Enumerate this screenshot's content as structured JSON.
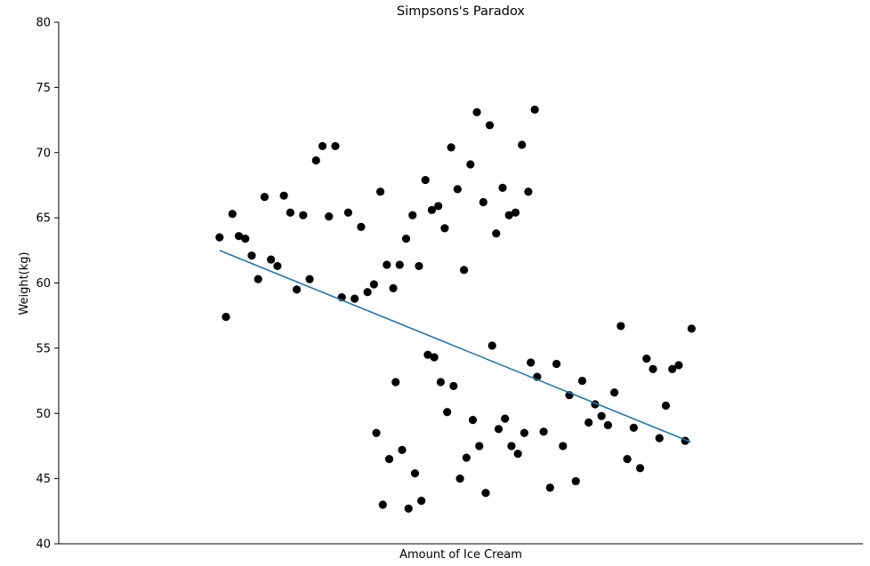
{
  "chart_data": {
    "type": "scatter",
    "title": "Simpsons's Paradox",
    "xlabel": "Amount of Ice Cream",
    "ylabel": "Weight(kg)",
    "xlim": [
      0,
      100
    ],
    "ylim": [
      40,
      80
    ],
    "yticks": [
      40,
      45,
      50,
      55,
      60,
      65,
      70,
      75,
      80
    ],
    "xticks": [],
    "grid": false,
    "legend": "none",
    "colors": {
      "points": "#000000",
      "trend": "#1f77b4",
      "axis": "#000000"
    },
    "points": [
      [
        20.0,
        63.5
      ],
      [
        20.8,
        57.4
      ],
      [
        21.6,
        65.3
      ],
      [
        22.4,
        63.6
      ],
      [
        23.2,
        63.4
      ],
      [
        24.0,
        62.1
      ],
      [
        24.8,
        60.3
      ],
      [
        25.6,
        66.6
      ],
      [
        26.4,
        61.8
      ],
      [
        27.2,
        61.3
      ],
      [
        28.0,
        66.7
      ],
      [
        28.8,
        65.4
      ],
      [
        29.6,
        59.5
      ],
      [
        30.4,
        65.2
      ],
      [
        31.2,
        60.3
      ],
      [
        32.0,
        69.4
      ],
      [
        32.8,
        70.5
      ],
      [
        33.6,
        65.1
      ],
      [
        34.4,
        70.5
      ],
      [
        35.2,
        58.9
      ],
      [
        36.0,
        65.4
      ],
      [
        36.8,
        58.8
      ],
      [
        37.6,
        64.3
      ],
      [
        38.4,
        59.3
      ],
      [
        39.2,
        59.9
      ],
      [
        40.0,
        67.0
      ],
      [
        40.8,
        61.4
      ],
      [
        41.6,
        59.6
      ],
      [
        42.4,
        61.4
      ],
      [
        43.2,
        63.4
      ],
      [
        44.0,
        65.2
      ],
      [
        44.8,
        61.3
      ],
      [
        45.6,
        67.9
      ],
      [
        46.4,
        65.6
      ],
      [
        47.2,
        65.9
      ],
      [
        48.0,
        64.2
      ],
      [
        48.8,
        70.4
      ],
      [
        49.6,
        67.2
      ],
      [
        50.4,
        61.0
      ],
      [
        51.2,
        69.1
      ],
      [
        52.0,
        73.1
      ],
      [
        52.8,
        66.2
      ],
      [
        53.6,
        72.1
      ],
      [
        54.4,
        63.8
      ],
      [
        55.2,
        67.3
      ],
      [
        56.0,
        65.2
      ],
      [
        56.8,
        65.4
      ],
      [
        57.6,
        70.6
      ],
      [
        58.4,
        67.0
      ],
      [
        59.2,
        73.3
      ],
      [
        39.5,
        48.5
      ],
      [
        40.3,
        43.0
      ],
      [
        41.1,
        46.5
      ],
      [
        41.9,
        52.4
      ],
      [
        42.7,
        47.2
      ],
      [
        43.5,
        42.7
      ],
      [
        44.3,
        45.4
      ],
      [
        45.1,
        43.3
      ],
      [
        45.9,
        54.5
      ],
      [
        46.7,
        54.3
      ],
      [
        47.5,
        52.4
      ],
      [
        48.3,
        50.1
      ],
      [
        49.1,
        52.1
      ],
      [
        49.9,
        45.0
      ],
      [
        50.7,
        46.6
      ],
      [
        51.5,
        49.5
      ],
      [
        52.3,
        47.5
      ],
      [
        53.1,
        43.9
      ],
      [
        53.9,
        55.2
      ],
      [
        54.7,
        48.8
      ],
      [
        55.5,
        49.6
      ],
      [
        56.3,
        47.5
      ],
      [
        57.1,
        46.9
      ],
      [
        57.9,
        48.5
      ],
      [
        58.7,
        53.9
      ],
      [
        59.5,
        52.8
      ],
      [
        60.3,
        48.6
      ],
      [
        61.1,
        44.3
      ],
      [
        61.9,
        53.8
      ],
      [
        62.7,
        47.5
      ],
      [
        63.5,
        51.4
      ],
      [
        64.3,
        44.8
      ],
      [
        65.1,
        52.5
      ],
      [
        65.9,
        49.3
      ],
      [
        66.7,
        50.7
      ],
      [
        67.5,
        49.8
      ],
      [
        68.3,
        49.1
      ],
      [
        69.1,
        51.6
      ],
      [
        69.9,
        56.7
      ],
      [
        70.7,
        46.5
      ],
      [
        71.5,
        48.9
      ],
      [
        72.3,
        45.8
      ],
      [
        73.1,
        54.2
      ],
      [
        73.9,
        53.4
      ],
      [
        74.7,
        48.1
      ],
      [
        75.5,
        50.6
      ],
      [
        76.3,
        53.4
      ],
      [
        77.1,
        53.7
      ],
      [
        77.9,
        47.9
      ],
      [
        78.7,
        56.5
      ]
    ],
    "trendline": {
      "x": [
        20.0,
        78.6
      ],
      "y": [
        62.5,
        47.8
      ]
    }
  }
}
